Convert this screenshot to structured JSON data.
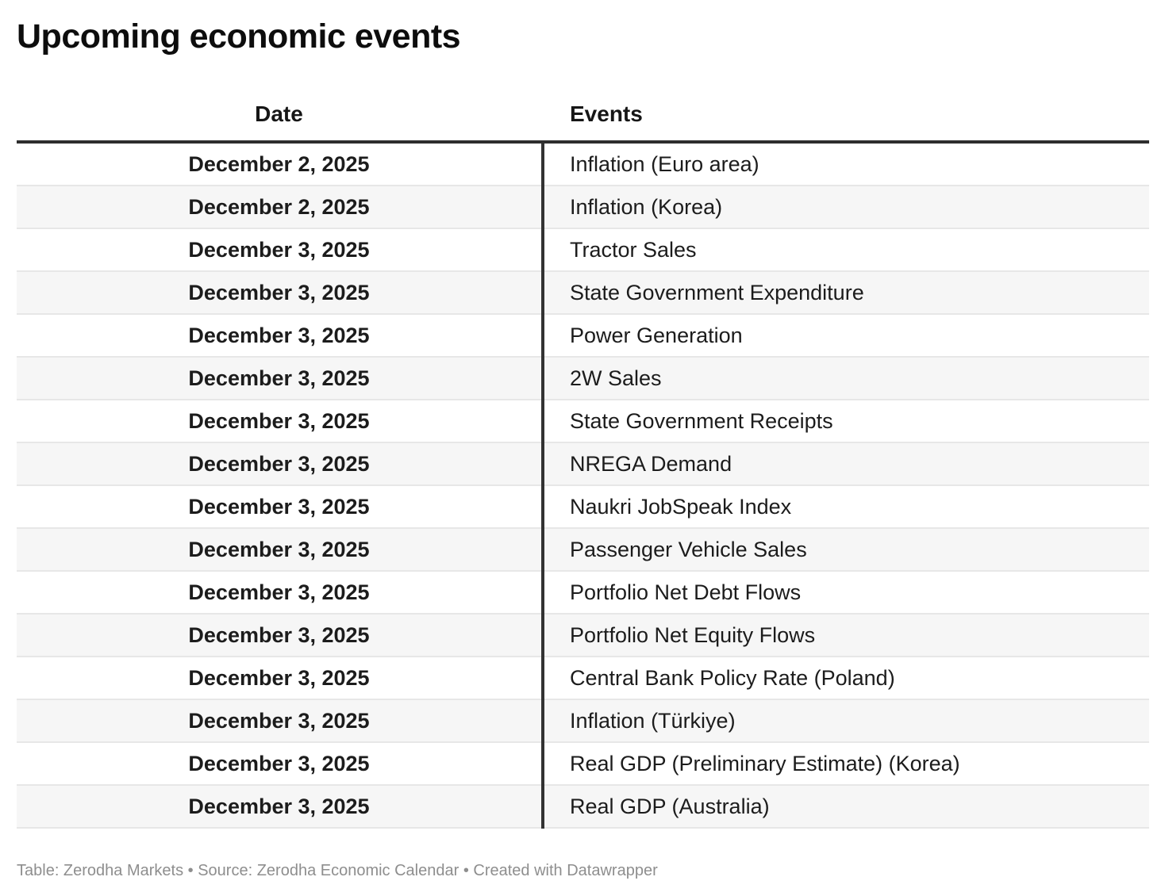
{
  "title": "Upcoming economic events",
  "table": {
    "columns": {
      "date": "Date",
      "events": "Events"
    },
    "rows": [
      {
        "date": "December 2, 2025",
        "event": "Inflation (Euro area)"
      },
      {
        "date": "December 2, 2025",
        "event": "Inflation (Korea)"
      },
      {
        "date": "December 3, 2025",
        "event": "Tractor Sales"
      },
      {
        "date": "December 3, 2025",
        "event": "State Government Expenditure"
      },
      {
        "date": "December 3, 2025",
        "event": "Power Generation"
      },
      {
        "date": "December 3, 2025",
        "event": "2W Sales"
      },
      {
        "date": "December 3, 2025",
        "event": "State Government Receipts"
      },
      {
        "date": "December 3, 2025",
        "event": "NREGA Demand"
      },
      {
        "date": "December 3, 2025",
        "event": "Naukri JobSpeak Index"
      },
      {
        "date": "December 3, 2025",
        "event": "Passenger Vehicle Sales"
      },
      {
        "date": "December 3, 2025",
        "event": "Portfolio Net Debt Flows"
      },
      {
        "date": "December 3, 2025",
        "event": "Portfolio Net Equity Flows"
      },
      {
        "date": "December 3, 2025",
        "event": "Central Bank Policy Rate (Poland)"
      },
      {
        "date": "December 3, 2025",
        "event": "Inflation (Türkiye)"
      },
      {
        "date": "December 3, 2025",
        "event": "Real GDP (Preliminary Estimate) (Korea)"
      },
      {
        "date": "December 3, 2025",
        "event": "Real GDP (Australia)"
      }
    ]
  },
  "footer": "Table: Zerodha Markets • Source: Zerodha Economic Calendar • Created with Datawrapper",
  "colors": {
    "header_rule": "#2e2e2e",
    "column_divider": "#333333",
    "alt_row_bg": "#f6f6f6",
    "row_separator": "#e7e7e7",
    "footer_text": "#8e8e8e"
  }
}
